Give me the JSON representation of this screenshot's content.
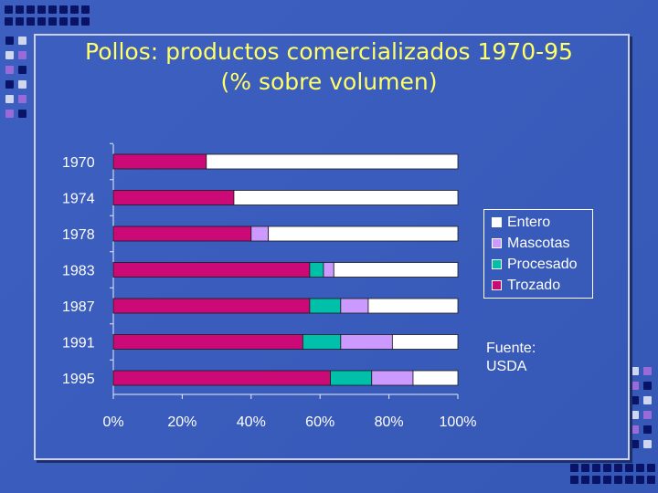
{
  "title_line1": "Pollos: productos comercializados 1970-95",
  "title_line2": "(% sobre volumen)",
  "source_label": "Fuente:",
  "source_value": "USDA",
  "colors": {
    "Trozado": "#cc0a77",
    "Procesado": "#00c0aa",
    "Mascotas": "#cc99ff",
    "Entero": "#ffffff"
  },
  "chart_data": {
    "type": "bar",
    "orientation": "horizontal",
    "stacked": true,
    "title": "Pollos: productos comercializados 1970-95 (% sobre volumen)",
    "xlabel": "",
    "ylabel": "",
    "categories": [
      "1970",
      "1974",
      "1978",
      "1983",
      "1987",
      "1991",
      "1995"
    ],
    "series": [
      {
        "name": "Trozado",
        "values": [
          27,
          35,
          40,
          57,
          57,
          55,
          63
        ]
      },
      {
        "name": "Procesado",
        "values": [
          0,
          0,
          0,
          4,
          9,
          11,
          12
        ]
      },
      {
        "name": "Mascotas",
        "values": [
          0,
          0,
          5,
          3,
          8,
          15,
          12
        ]
      },
      {
        "name": "Entero",
        "values": [
          73,
          65,
          55,
          36,
          26,
          19,
          13
        ]
      }
    ],
    "xlim": [
      0,
      100
    ],
    "xticks": [
      "0%",
      "20%",
      "40%",
      "60%",
      "80%",
      "100%"
    ],
    "legend": [
      "Entero",
      "Mascotas",
      "Procesado",
      "Trozado"
    ],
    "legend_position": "right"
  }
}
